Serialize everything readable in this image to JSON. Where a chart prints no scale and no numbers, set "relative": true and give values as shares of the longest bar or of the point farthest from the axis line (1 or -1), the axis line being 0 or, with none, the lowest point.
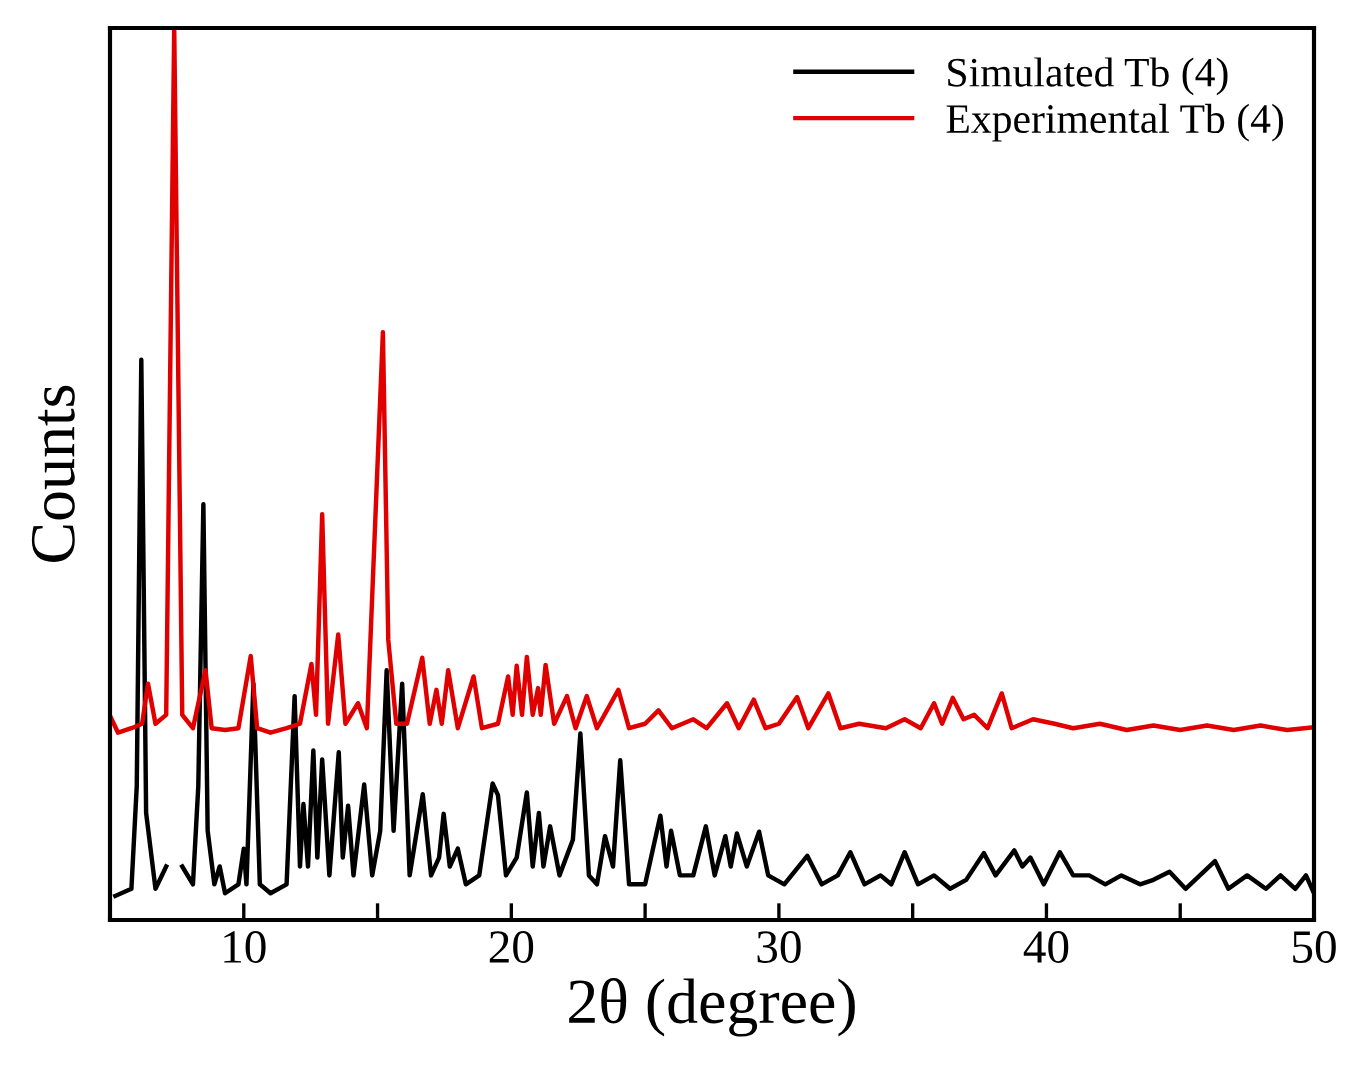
{
  "chart_data": {
    "type": "line",
    "relative": true,
    "xlabel": "2θ (degree)",
    "ylabel": "Counts",
    "xlim": [
      5,
      50
    ],
    "xticks": [
      {
        "value": 10,
        "label": "10"
      },
      {
        "value": 15,
        "label": null
      },
      {
        "value": 20,
        "label": "20"
      },
      {
        "value": 25,
        "label": null
      },
      {
        "value": 30,
        "label": "30"
      },
      {
        "value": 35,
        "label": null
      },
      {
        "value": 40,
        "label": "40"
      },
      {
        "value": 45,
        "label": null
      },
      {
        "value": 50,
        "label": "50"
      }
    ],
    "tick_labels": "x",
    "legend": "top right",
    "grid": false,
    "marker": "none",
    "line_style": "solid",
    "series": [
      {
        "name": "Simulated Tb (4)",
        "color": "#000000",
        "x": [
          5.2,
          5.8,
          6.0,
          6.17,
          6.35,
          6.7,
          7.1,
          7.4,
          7.7,
          8.1,
          8.3,
          8.49,
          8.65,
          8.9,
          9.1,
          9.3,
          9.8,
          10.0,
          10.1,
          10.36,
          10.6,
          11.0,
          11.6,
          11.9,
          12.1,
          12.23,
          12.4,
          12.6,
          12.75,
          12.93,
          13.2,
          13.55,
          13.7,
          13.9,
          14.1,
          14.5,
          14.8,
          15.1,
          15.34,
          15.6,
          15.92,
          16.2,
          16.69,
          17.0,
          17.3,
          17.47,
          17.7,
          18.0,
          18.3,
          18.8,
          19.3,
          19.5,
          19.8,
          20.2,
          20.58,
          20.8,
          21.03,
          21.2,
          21.45,
          21.8,
          22.3,
          22.58,
          22.9,
          23.2,
          23.5,
          23.8,
          24.07,
          24.4,
          25.0,
          25.57,
          25.8,
          25.97,
          26.3,
          26.8,
          27.27,
          27.6,
          28.0,
          28.2,
          28.43,
          28.8,
          29.26,
          29.6,
          30.2,
          31.06,
          31.6,
          32.2,
          32.67,
          33.2,
          33.8,
          34.2,
          34.7,
          35.2,
          35.8,
          36.4,
          37.0,
          37.66,
          38.1,
          38.8,
          39.1,
          39.4,
          39.9,
          40.5,
          41.0,
          41.6,
          42.2,
          42.8,
          43.5,
          44.0,
          44.6,
          45.2,
          46.3,
          46.8,
          47.5,
          48.2,
          48.75,
          49.3,
          49.7,
          50.0
        ],
        "values": [
          0.027,
          0.035,
          0.15,
          0.628,
          0.12,
          0.035,
          0.06,
          null,
          0.06,
          0.04,
          0.15,
          0.466,
          0.1,
          0.04,
          0.06,
          0.03,
          0.04,
          0.08,
          0.04,
          0.265,
          0.04,
          0.03,
          0.04,
          0.251,
          0.06,
          0.13,
          0.06,
          0.19,
          0.07,
          0.18,
          0.05,
          0.188,
          0.07,
          0.128,
          0.05,
          0.152,
          0.05,
          0.1,
          0.28,
          0.1,
          0.265,
          0.05,
          0.141,
          0.05,
          0.07,
          0.119,
          0.06,
          0.08,
          0.04,
          0.05,
          0.153,
          0.14,
          0.05,
          0.07,
          0.143,
          0.06,
          0.12,
          0.06,
          0.105,
          0.05,
          0.09,
          0.209,
          0.05,
          0.04,
          0.094,
          0.06,
          0.179,
          0.04,
          0.04,
          0.117,
          0.06,
          0.1,
          0.05,
          0.05,
          0.105,
          0.05,
          0.094,
          0.06,
          0.097,
          0.06,
          0.099,
          0.05,
          0.04,
          0.072,
          0.04,
          0.05,
          0.076,
          0.04,
          0.05,
          0.04,
          0.076,
          0.04,
          0.05,
          0.035,
          0.045,
          0.075,
          0.05,
          0.078,
          0.06,
          0.07,
          0.04,
          0.076,
          0.05,
          0.05,
          0.04,
          0.05,
          0.04,
          0.045,
          0.054,
          0.035,
          0.066,
          0.035,
          0.05,
          0.035,
          0.05,
          0.035,
          0.05,
          0.03
        ]
      },
      {
        "name": "Experimental Tb (4)",
        "color": "#e00000",
        "x": [
          5.0,
          5.3,
          5.8,
          6.2,
          6.42,
          6.7,
          7.1,
          7.4,
          7.7,
          8.1,
          8.57,
          8.8,
          9.3,
          9.8,
          10.26,
          10.5,
          11.0,
          11.6,
          12.1,
          12.53,
          12.7,
          12.93,
          13.15,
          13.53,
          13.8,
          14.27,
          14.6,
          15.2,
          15.4,
          15.7,
          16.1,
          16.67,
          16.95,
          17.2,
          17.4,
          17.64,
          18.0,
          18.59,
          18.9,
          19.5,
          19.88,
          20.05,
          20.2,
          20.4,
          20.58,
          20.8,
          21.0,
          21.1,
          21.28,
          21.6,
          22.08,
          22.4,
          22.82,
          23.2,
          24.0,
          24.4,
          25.0,
          25.5,
          26.0,
          26.8,
          27.3,
          28.06,
          28.5,
          29.06,
          29.5,
          30.0,
          30.68,
          31.1,
          31.85,
          32.3,
          33.0,
          34.0,
          34.7,
          35.3,
          35.8,
          36.1,
          36.5,
          36.9,
          37.3,
          37.8,
          38.33,
          38.7,
          39.5,
          40.3,
          41.0,
          42.0,
          43.0,
          44.0,
          45.0,
          46.0,
          47.0,
          48.0,
          49.0,
          50.0
        ],
        "values": [
          0.229,
          0.21,
          0.215,
          0.22,
          0.265,
          0.22,
          0.23,
          1,
          0.23,
          0.215,
          0.28,
          0.215,
          0.213,
          0.215,
          0.296,
          0.215,
          0.21,
          0.215,
          0.22,
          0.287,
          0.23,
          0.455,
          0.22,
          0.32,
          0.22,
          0.243,
          0.215,
          0.659,
          0.314,
          0.22,
          0.22,
          0.294,
          0.22,
          0.258,
          0.22,
          0.28,
          0.215,
          0.273,
          0.215,
          0.22,
          0.273,
          0.23,
          0.285,
          0.23,
          0.295,
          0.23,
          0.26,
          0.23,
          0.286,
          0.22,
          0.251,
          0.215,
          0.251,
          0.215,
          0.258,
          0.215,
          0.22,
          0.235,
          0.215,
          0.225,
          0.215,
          0.243,
          0.215,
          0.247,
          0.215,
          0.22,
          0.25,
          0.215,
          0.254,
          0.215,
          0.22,
          0.215,
          0.225,
          0.215,
          0.243,
          0.22,
          0.249,
          0.225,
          0.23,
          0.215,
          0.254,
          0.215,
          0.225,
          0.22,
          0.215,
          0.22,
          0.213,
          0.218,
          0.213,
          0.218,
          0.213,
          0.218,
          0.213,
          0.216
        ]
      }
    ]
  }
}
